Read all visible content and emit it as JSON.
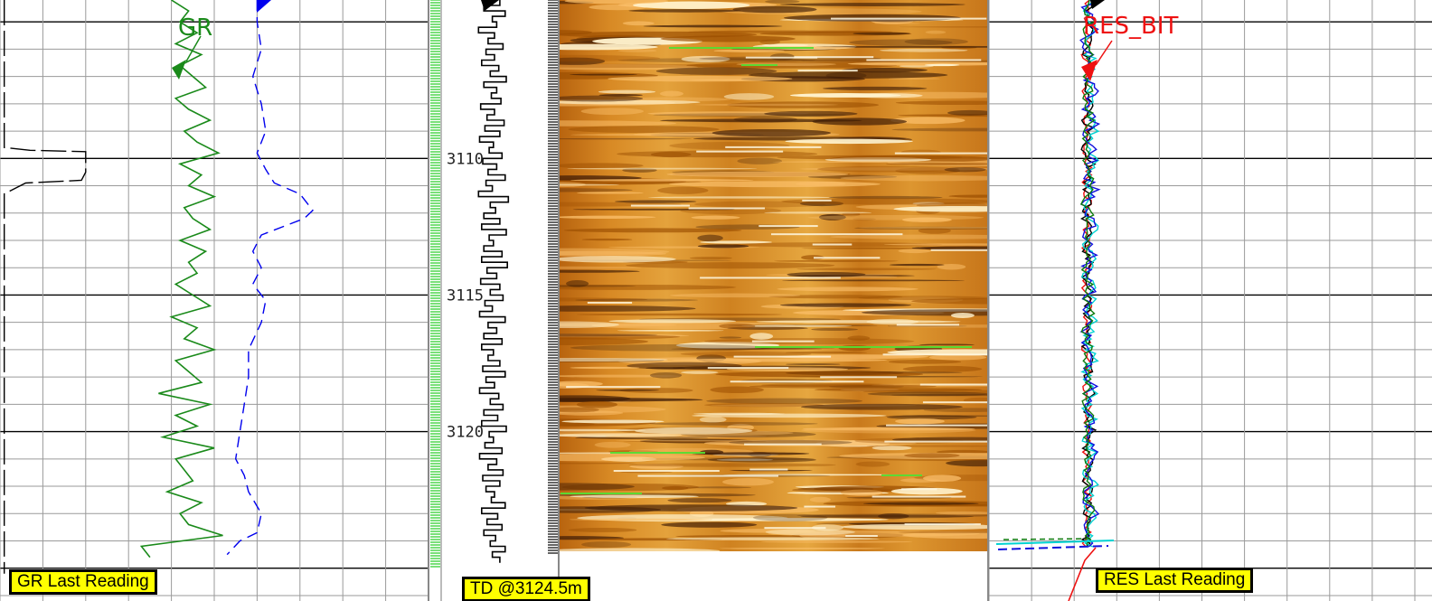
{
  "chart_data": {
    "type": "line",
    "title": "",
    "depth_axis": {
      "unit": "m",
      "range": [
        3104.2,
        3126.2
      ],
      "tick_labels": [
        "3110",
        "3115",
        "3120"
      ],
      "tick_values": [
        3110,
        3115,
        3120
      ],
      "direction": "downward"
    },
    "grid": true,
    "tracks": [
      {
        "name": "gamma-ray-track",
        "curve_labels": [
          {
            "text": "GR",
            "color": "#1a8a1a"
          }
        ],
        "series": [
          {
            "name": "GR",
            "color": "#1a8a1a",
            "style": "solid",
            "scale": [
              0,
              100
            ],
            "depth": [
              3104.2,
              3104.6,
              3105.0,
              3105.4,
              3105.8,
              3106.2,
              3106.6,
              3107.0,
              3107.4,
              3107.8,
              3108.2,
              3108.6,
              3109.0,
              3109.4,
              3109.8,
              3110.2,
              3110.6,
              3111.0,
              3111.4,
              3111.8,
              3112.2,
              3112.6,
              3113.0,
              3113.4,
              3113.8,
              3114.2,
              3114.6,
              3115.0,
              3115.4,
              3115.8,
              3116.2,
              3116.6,
              3117.0,
              3117.4,
              3117.8,
              3118.2,
              3118.6,
              3119.0,
              3119.4,
              3119.8,
              3120.2,
              3120.6,
              3121.0,
              3121.4,
              3121.8,
              3122.2,
              3122.6,
              3123.0,
              3123.4,
              3123.8,
              3124.2,
              3124.6
            ],
            "values": [
              40,
              44,
              42,
              46,
              41,
              47,
              42,
              45,
              48,
              41,
              44,
              49,
              43,
              46,
              51,
              42,
              47,
              44,
              50,
              43,
              45,
              49,
              42,
              48,
              44,
              46,
              41,
              45,
              49,
              40,
              46,
              43,
              50,
              41,
              44,
              47,
              37,
              49,
              41,
              46,
              38,
              50,
              41,
              43,
              45,
              39,
              47,
              42,
              44,
              52,
              33,
              35
            ]
          },
          {
            "name": "secondary-curve",
            "color": "#0000ee",
            "style": "dashed",
            "scale": [
              0,
              100
            ],
            "depth": [
              3104.2,
              3105.0,
              3106.0,
              3107.0,
              3108.0,
              3109.0,
              3109.8,
              3110.4,
              3110.9,
              3111.3,
              3111.9,
              3112.2,
              3112.8,
              3113.4,
              3114.0,
              3114.6,
              3115.2,
              3116.0,
              3117.0,
              3118.0,
              3119.0,
              3120.0,
              3121.0,
              3121.6,
              3122.2,
              3123.0,
              3123.7,
              3124.0,
              3124.5
            ],
            "values": [
              60,
              60,
              61,
              59,
              61,
              62,
              60,
              62,
              64,
              70,
              73,
              71,
              61,
              59,
              61,
              59,
              62,
              61,
              58,
              58,
              57,
              56,
              55,
              57,
              58,
              61,
              60,
              56,
              53
            ]
          },
          {
            "name": "caliper-curve",
            "color": "#000000",
            "style": "long-dashed",
            "scale": [
              0,
              100
            ],
            "depth": [
              3104.2,
              3107.0,
              3107.5,
              3108.0,
              3109.6,
              3109.7,
              3109.75,
              3110.5,
              3110.8,
              3110.9,
              3111.3,
              3114.0,
              3118.0,
              3122.0,
              3125.2
            ],
            "values": [
              1,
              1,
              1,
              1,
              1,
              7,
              20,
              20,
              19,
              6,
              1,
              1,
              1,
              1,
              1
            ]
          }
        ]
      },
      {
        "name": "depth-track",
        "series": [
          {
            "name": "rate-of-penetration-curve",
            "color": "#000000",
            "style": "step",
            "scale": [
              0,
              100
            ],
            "depth_step_m": 0.2,
            "values": [
              55,
              40,
              60,
              48,
              52,
              35,
              50,
              44,
              58,
              42,
              50,
              38,
              54,
              46,
              61,
              40,
              52,
              47,
              56,
              37,
              50,
              43,
              59,
              41,
              55,
              36,
              49,
              45,
              57,
              39,
              52,
              44,
              60,
              42,
              48,
              35,
              63,
              46,
              51,
              40,
              55,
              38,
              61,
              45,
              49,
              40,
              57,
              38,
              62,
              43,
              52,
              37,
              55,
              46,
              58,
              41,
              48,
              36,
              60,
              44,
              52,
              40,
              57,
              38,
              49,
              44,
              55,
              39,
              60,
              42,
              50,
              36,
              54,
              46,
              58,
              40,
              53,
              38,
              61,
              45,
              49,
              41,
              57,
              36,
              52,
              44,
              58,
              39,
              55,
              42,
              50,
              47,
              60,
              38,
              53,
              43,
              57,
              40,
              51,
              46,
              60,
              48,
              55
            ]
          }
        ]
      },
      {
        "name": "resistivity-image-track",
        "image": "borehole-resistivity-image",
        "colormap": [
          "#3c1a05",
          "#9a4d00",
          "#d98a1c",
          "#fbbf6a",
          "#fff2cc"
        ]
      },
      {
        "name": "resistivity-track",
        "curve_labels": [
          {
            "text": "RES_BIT",
            "color": "#ee1111"
          }
        ],
        "scale_note": "logarithmic",
        "series": [
          {
            "name": "RES_BIT",
            "color": "#ee1111",
            "center": 108,
            "spread": 4
          },
          {
            "name": "resistivity-curve-black",
            "color": "#000000",
            "center": 110,
            "spread": 5
          },
          {
            "name": "resistivity-curve-cyan",
            "color": "#00d2d2",
            "center": 112,
            "spread": 6
          },
          {
            "name": "resistivity-curve-blue",
            "color": "#1010dd",
            "center": 111,
            "spread": 7
          },
          {
            "name": "resistivity-curve-green",
            "color": "#0c7a0c",
            "center": 109,
            "spread": 5
          }
        ]
      }
    ]
  },
  "labels": {
    "gr_last_reading": "GR Last Reading",
    "td": "TD @3124.5m",
    "res_last_reading": "RES Last Reading",
    "gr": "GR",
    "res_bit": "RES_BIT"
  },
  "colors": {
    "gr": "#1a8a1a",
    "blue_dashed": "#0000ee",
    "res_bit": "#ee1111",
    "tag_bg": "#ffff00",
    "grid": "#9a9a9a",
    "grid_major": "#000000",
    "depth_ticks": "#22cc22"
  }
}
